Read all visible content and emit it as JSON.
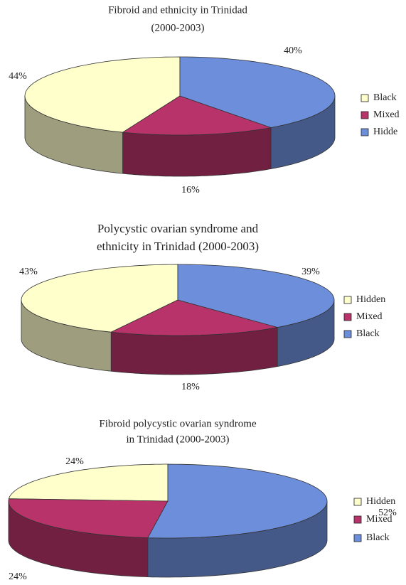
{
  "chart_data": [
    {
      "type": "pie3d",
      "title": [
        "Fibroid and ethnicity in Trinidad",
        "(2000-2003)"
      ],
      "categories": [
        "Black",
        "Mixed",
        "Hidde"
      ],
      "values": [
        44,
        16,
        40
      ],
      "value_labels": [
        "44%",
        "16%",
        "40%"
      ],
      "colors": [
        "#ffffcc",
        "#b8336a",
        "#6d8fdb"
      ],
      "legend": "right"
    },
    {
      "type": "pie3d",
      "title": [
        "Polycystic ovarian syndrome and",
        "ethnicity in Trinidad (2000-2003)"
      ],
      "categories": [
        "Hidden",
        "Mixed",
        "Black"
      ],
      "values": [
        43,
        18,
        39
      ],
      "value_labels": [
        "43%",
        "18%",
        "39%"
      ],
      "colors": [
        "#ffffcc",
        "#b8336a",
        "#6d8fdb"
      ],
      "legend": "right"
    },
    {
      "type": "pie3d",
      "title": [
        "Fibroid polycystic ovarian syndrome",
        "in Trinidad (2000-2003)"
      ],
      "categories": [
        "Hidden",
        "Mixed",
        "Black"
      ],
      "values": [
        24,
        24,
        52
      ],
      "value_labels": [
        "24%",
        "24%",
        "52%"
      ],
      "colors": [
        "#ffffcc",
        "#b8336a",
        "#6d8fdb"
      ],
      "legend": "right"
    }
  ]
}
